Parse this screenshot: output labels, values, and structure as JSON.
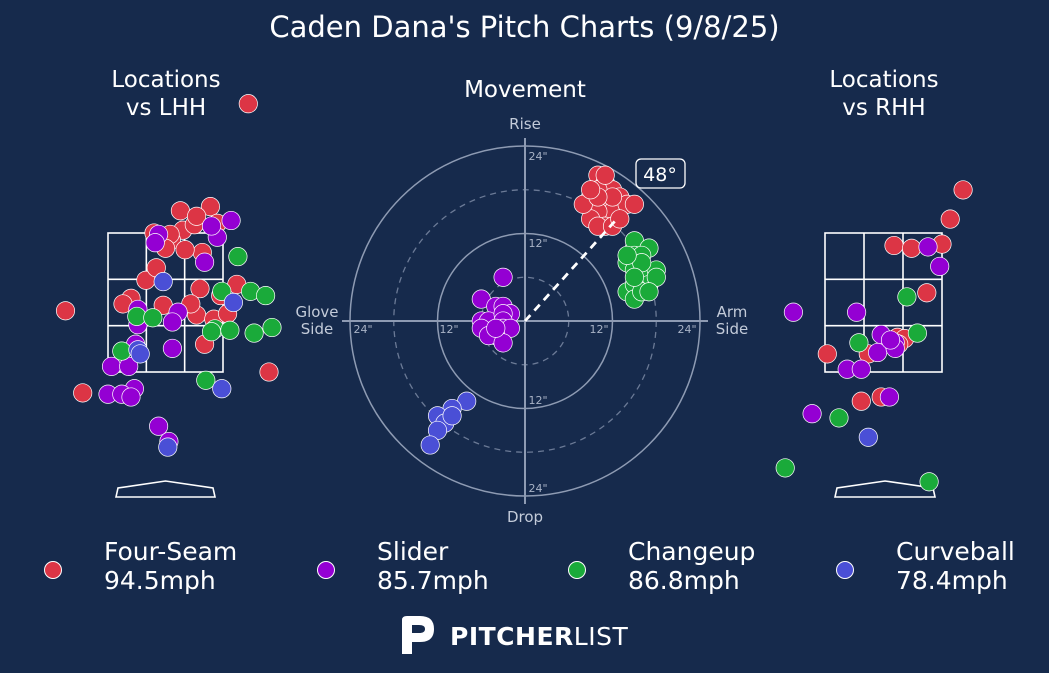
{
  "title": "Caden Dana's Pitch Charts (9/8/25)",
  "panels": {
    "lhh_title": "Locations\nvs LHH",
    "movement_title": "Movement",
    "rhh_title": "Locations\nvs RHH"
  },
  "movement_axis": {
    "top": "Rise",
    "bottom": "Drop",
    "left": "Glove\nSide",
    "right": "Arm\nSide",
    "ring_labels": [
      "24\"",
      "12\"",
      "12\"",
      "24\"",
      "24\"",
      "12\"",
      "12\"",
      "24\""
    ]
  },
  "arm_angle_label": "48°",
  "colors": {
    "background": "#162a4c",
    "four_seam": "#dc3545",
    "slider": "#9400d3",
    "changeup": "#1aaa3a",
    "curveball": "#4a4fd6"
  },
  "legend": [
    {
      "name": "Four-Seam",
      "speed": "94.5mph",
      "color": "#dc3545"
    },
    {
      "name": "Slider",
      "speed": "85.7mph",
      "color": "#9400d3"
    },
    {
      "name": "Changeup",
      "speed": "86.8mph",
      "color": "#1aaa3a"
    },
    {
      "name": "Curveball",
      "speed": "78.4mph",
      "color": "#4a4fd6"
    }
  ],
  "brand": {
    "bold": "PITCHER",
    "light": "LIST"
  },
  "chart_data": [
    {
      "type": "scatter",
      "title": "Locations vs LHH",
      "units": "strike-zone fractions (x: 0 left edge to 1 right edge, y: 0 bottom to 1 top)",
      "series": [
        {
          "name": "Four-Seam",
          "points": [
            [
              1.22,
              1.93
            ],
            [
              -0.37,
              0.44
            ],
            [
              0.89,
              1.19
            ],
            [
              0.65,
              1.02
            ],
            [
              0.63,
              1.16
            ],
            [
              0.75,
              1.06
            ],
            [
              0.95,
              1.07
            ],
            [
              0.77,
              1.12
            ],
            [
              0.4,
              1.0
            ],
            [
              0.82,
              0.86
            ],
            [
              0.55,
              0.95
            ],
            [
              1.12,
              0.63
            ],
            [
              0.33,
              0.66
            ],
            [
              0.42,
              0.75
            ],
            [
              0.8,
              0.6
            ],
            [
              0.2,
              0.53
            ],
            [
              0.13,
              0.49
            ],
            [
              0.98,
              0.55
            ],
            [
              0.48,
              0.48
            ],
            [
              0.77,
              0.41
            ],
            [
              0.72,
              0.49
            ],
            [
              0.92,
              0.38
            ],
            [
              1.04,
              0.42
            ],
            [
              0.84,
              0.2
            ],
            [
              1.4,
              0.0
            ],
            [
              -0.22,
              -0.15
            ],
            [
              0.67,
              0.88
            ],
            [
              0.54,
              0.99
            ],
            [
              0.5,
              0.89
            ]
          ]
        },
        {
          "name": "Slider",
          "points": [
            [
              1.07,
              1.09
            ],
            [
              0.44,
              0.99
            ],
            [
              0.41,
              0.93
            ],
            [
              0.95,
              0.97
            ],
            [
              0.84,
              0.79
            ],
            [
              0.9,
              1.05
            ],
            [
              0.26,
              0.45
            ],
            [
              0.61,
              0.43
            ],
            [
              0.56,
              0.36
            ],
            [
              0.26,
              0.34
            ],
            [
              0.56,
              0.17
            ],
            [
              0.24,
              0.2
            ],
            [
              0.03,
              0.04
            ],
            [
              0.18,
              0.04
            ],
            [
              0.23,
              -0.12
            ],
            [
              0.0,
              -0.16
            ],
            [
              0.12,
              -0.16
            ],
            [
              0.2,
              -0.18
            ],
            [
              0.44,
              -0.39
            ],
            [
              0.53,
              -0.5
            ]
          ]
        },
        {
          "name": "Changeup",
          "points": [
            [
              1.13,
              0.83
            ],
            [
              1.24,
              0.58
            ],
            [
              1.37,
              0.55
            ],
            [
              0.99,
              0.58
            ],
            [
              1.5,
              0.32
            ],
            [
              0.25,
              0.4
            ],
            [
              0.39,
              0.39
            ],
            [
              0.93,
              0.31
            ],
            [
              1.06,
              0.3
            ],
            [
              0.9,
              0.29
            ],
            [
              1.27,
              0.28
            ],
            [
              0.12,
              0.15
            ],
            [
              0.85,
              -0.06
            ]
          ]
        },
        {
          "name": "Curveball",
          "points": [
            [
              0.48,
              0.65
            ],
            [
              1.09,
              0.5
            ],
            [
              0.26,
              0.16
            ],
            [
              0.28,
              0.13
            ],
            [
              0.99,
              -0.12
            ],
            [
              0.52,
              -0.54
            ]
          ]
        }
      ]
    },
    {
      "type": "scatter",
      "title": "Movement",
      "units": "inches (x: positive = arm side, y: positive = rise)",
      "xlim": [
        -24,
        24
      ],
      "ylim": [
        -24,
        24
      ],
      "arm_angle_deg": 48,
      "series": [
        {
          "name": "Four-Seam",
          "points": [
            [
              10,
              20
            ],
            [
              11,
              19
            ],
            [
              12,
              18
            ],
            [
              9,
              17
            ],
            [
              10,
              18
            ],
            [
              11,
              16
            ],
            [
              13,
              17
            ],
            [
              12,
              15
            ],
            [
              10,
              15
            ],
            [
              9,
              14
            ],
            [
              11,
              13
            ],
            [
              10,
              13
            ],
            [
              14,
              16
            ],
            [
              12,
              13
            ],
            [
              8,
              16
            ],
            [
              13,
              14
            ],
            [
              15,
              16
            ],
            [
              11,
              20
            ],
            [
              12,
              17
            ],
            [
              10,
              17
            ],
            [
              9,
              18
            ]
          ]
        },
        {
          "name": "Slider",
          "points": [
            [
              -3,
              6
            ],
            [
              -6,
              3
            ],
            [
              -4,
              2
            ],
            [
              -3,
              2
            ],
            [
              -2,
              1
            ],
            [
              -6,
              0
            ],
            [
              -5,
              0
            ],
            [
              -3,
              1
            ],
            [
              -3,
              0
            ],
            [
              -6,
              -1
            ],
            [
              -3,
              -1
            ],
            [
              -2,
              -1
            ],
            [
              -4,
              -2
            ],
            [
              -5,
              -2
            ],
            [
              -3,
              -3
            ],
            [
              -4,
              -1
            ]
          ]
        },
        {
          "name": "Changeup",
          "points": [
            [
              15,
              10
            ],
            [
              15,
              11
            ],
            [
              17,
              10
            ],
            [
              15,
              9
            ],
            [
              16,
              9
            ],
            [
              14,
              8
            ],
            [
              15,
              7
            ],
            [
              16,
              6
            ],
            [
              17,
              5
            ],
            [
              15,
              4
            ],
            [
              14,
              4
            ],
            [
              18,
              7
            ],
            [
              15,
              5
            ],
            [
              16,
              8
            ],
            [
              15,
              3
            ],
            [
              16,
              4
            ],
            [
              18,
              6
            ],
            [
              14,
              9
            ],
            [
              15,
              6
            ],
            [
              17,
              4
            ]
          ]
        },
        {
          "name": "Curveball",
          "points": [
            [
              -8,
              -11
            ],
            [
              -10,
              -12
            ],
            [
              -12,
              -13
            ],
            [
              -11,
              -14
            ],
            [
              -12,
              -15
            ],
            [
              -13,
              -17
            ],
            [
              -10,
              -13
            ]
          ]
        }
      ]
    },
    {
      "type": "scatter",
      "title": "Locations vs RHH",
      "units": "strike-zone fractions (x: 0 left edge to 1 right edge, y: 0 bottom to 1 top)",
      "series": [
        {
          "name": "Four-Seam",
          "points": [
            [
              1.18,
              1.31
            ],
            [
              1.07,
              1.1
            ],
            [
              0.59,
              0.91
            ],
            [
              0.74,
              0.89
            ],
            [
              1.0,
              0.92
            ],
            [
              0.87,
              0.57
            ],
            [
              0.62,
              0.25
            ],
            [
              0.68,
              0.24
            ],
            [
              0.63,
              0.2
            ],
            [
              0.37,
              0.13
            ],
            [
              0.02,
              0.13
            ],
            [
              0.31,
              -0.21
            ],
            [
              0.48,
              -0.18
            ]
          ]
        },
        {
          "name": "Slider",
          "points": [
            [
              0.88,
              0.9
            ],
            [
              0.98,
              0.76
            ],
            [
              -0.27,
              0.43
            ],
            [
              0.27,
              0.43
            ],
            [
              0.48,
              0.27
            ],
            [
              0.6,
              0.21
            ],
            [
              0.45,
              0.14
            ],
            [
              0.6,
              0.17
            ],
            [
              0.19,
              0.02
            ],
            [
              0.31,
              0.02
            ],
            [
              0.55,
              -0.18
            ],
            [
              -0.11,
              -0.3
            ],
            [
              0.56,
              0.23
            ]
          ]
        },
        {
          "name": "Changeup",
          "points": [
            [
              0.7,
              0.54
            ],
            [
              0.79,
              0.28
            ],
            [
              0.29,
              0.21
            ],
            [
              0.12,
              -0.33
            ],
            [
              -0.34,
              -0.69
            ],
            [
              0.89,
              -0.79
            ]
          ]
        },
        {
          "name": "Curveball",
          "points": [
            [
              0.37,
              -0.47
            ]
          ]
        }
      ]
    }
  ]
}
